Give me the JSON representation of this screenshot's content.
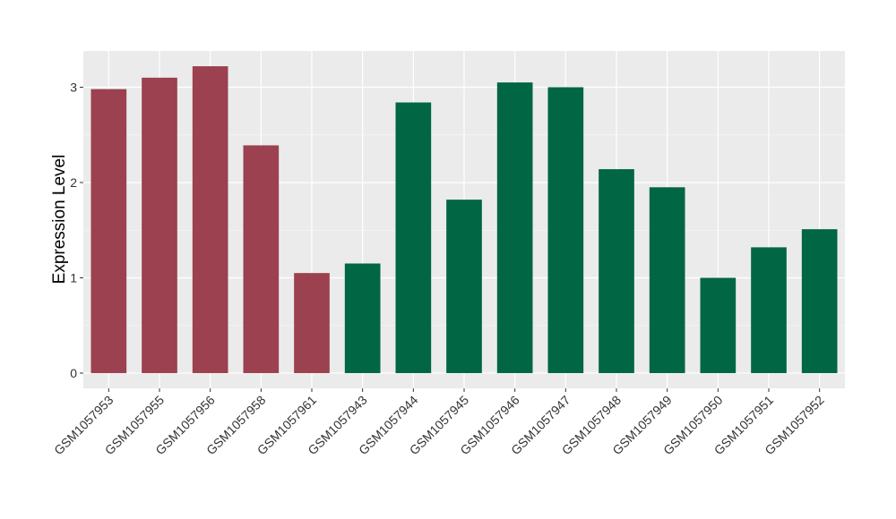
{
  "chart_data": {
    "type": "bar",
    "ylabel": "Expression Level",
    "xlabel": "",
    "title": "",
    "ylim": [
      -0.16,
      3.38
    ],
    "yticks": [
      0,
      1,
      2,
      3
    ],
    "grid": true,
    "colors": {
      "group_a": "#9b414f",
      "group_b": "#006643"
    },
    "categories": [
      "GSM1057953",
      "GSM1057955",
      "GSM1057956",
      "GSM1057958",
      "GSM1057961",
      "GSM1057943",
      "GSM1057944",
      "GSM1057945",
      "GSM1057946",
      "GSM1057947",
      "GSM1057948",
      "GSM1057949",
      "GSM1057950",
      "GSM1057951",
      "GSM1057952"
    ],
    "values": [
      2.98,
      3.1,
      3.22,
      2.39,
      1.05,
      1.15,
      2.84,
      1.82,
      3.05,
      3.0,
      2.14,
      1.95,
      1.0,
      1.32,
      1.51
    ],
    "groups": [
      "group_a",
      "group_a",
      "group_a",
      "group_a",
      "group_a",
      "group_b",
      "group_b",
      "group_b",
      "group_b",
      "group_b",
      "group_b",
      "group_b",
      "group_b",
      "group_b",
      "group_b"
    ]
  }
}
